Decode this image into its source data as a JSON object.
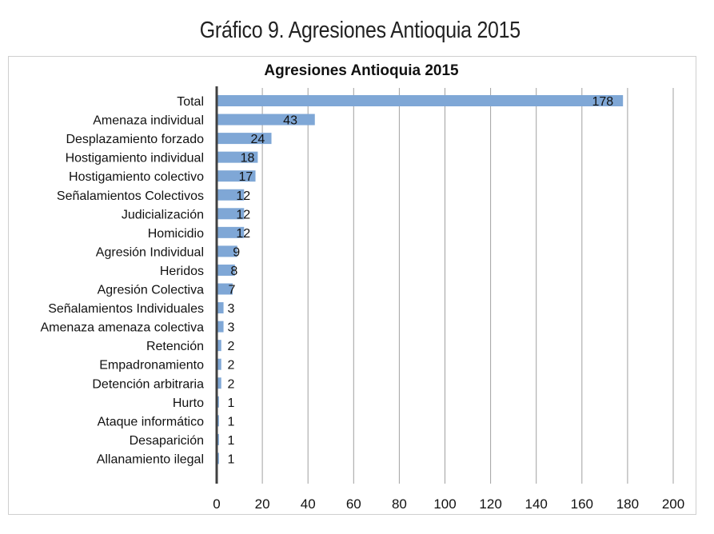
{
  "caption": "Gráfico 9. Agresiones Antioquia 2015",
  "chart_data": {
    "type": "bar",
    "orientation": "horizontal",
    "title": "Agresiones Antioquia 2015",
    "categories": [
      "Total",
      "Amenaza individual",
      "Desplazamiento forzado",
      "Hostigamiento individual",
      "Hostigamiento colectivo",
      "Señalamientos Colectivos",
      "Judicialización",
      "Homicidio",
      "Agresión Individual",
      "Heridos",
      "Agresión Colectiva",
      "Señalamientos Individuales",
      "Amenaza amenaza colectiva",
      "Retención",
      "Empadronamiento",
      "Detención arbitraria",
      "Hurto",
      "Ataque informático",
      "Desaparición",
      "Allanamiento ilegal"
    ],
    "values": [
      178,
      43,
      24,
      18,
      17,
      12,
      12,
      12,
      9,
      8,
      7,
      3,
      3,
      2,
      2,
      2,
      1,
      1,
      1,
      1
    ],
    "xlim": [
      0,
      200
    ],
    "xticks": [
      0,
      20,
      40,
      60,
      80,
      100,
      120,
      140,
      160,
      180,
      200
    ],
    "grid": true,
    "legend": "none",
    "colors": {
      "bar": "#7fa7d6",
      "grid": "#a0a0a0",
      "axis": "#404040"
    }
  }
}
